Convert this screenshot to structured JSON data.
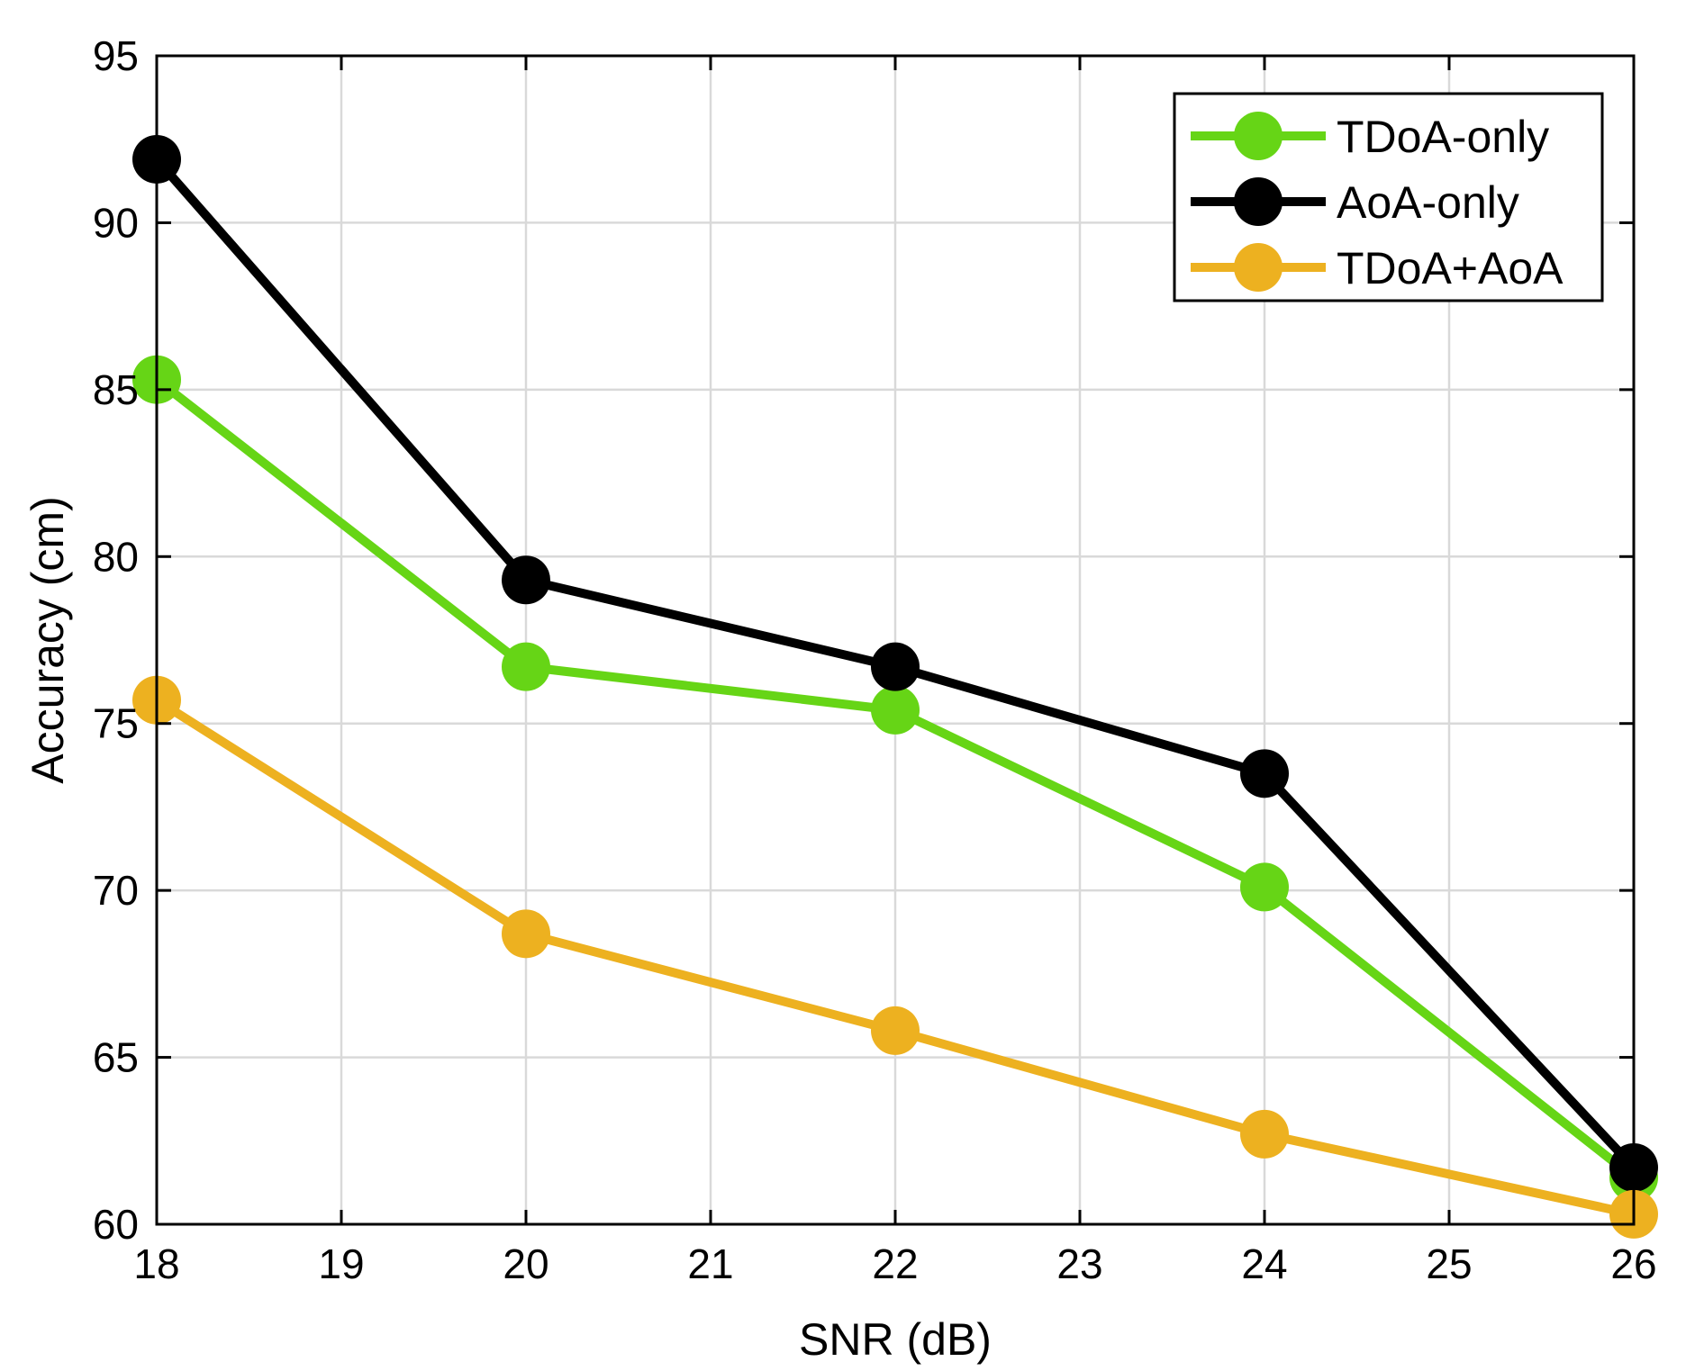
{
  "chart_data": {
    "type": "line",
    "title": "",
    "xlabel": "SNR (dB)",
    "ylabel": "Accuracy (cm)",
    "xlim": [
      18,
      26
    ],
    "ylim": [
      60,
      95
    ],
    "xticks": [
      18,
      19,
      20,
      21,
      22,
      23,
      24,
      25,
      26
    ],
    "yticks": [
      60,
      65,
      70,
      75,
      80,
      85,
      90,
      95
    ],
    "grid": true,
    "legend_position": "top-right",
    "x": [
      18,
      20,
      22,
      24,
      26
    ],
    "series": [
      {
        "name": "TDoA-only",
        "color": "#66d516",
        "values": [
          85.3,
          76.7,
          75.4,
          70.1,
          61.4
        ]
      },
      {
        "name": "AoA-only",
        "color": "#000000",
        "values": [
          91.9,
          79.3,
          76.7,
          73.5,
          61.7
        ]
      },
      {
        "name": "TDoA+AoA",
        "color": "#edb120",
        "values": [
          75.7,
          68.7,
          65.8,
          62.7,
          60.3
        ]
      }
    ]
  }
}
